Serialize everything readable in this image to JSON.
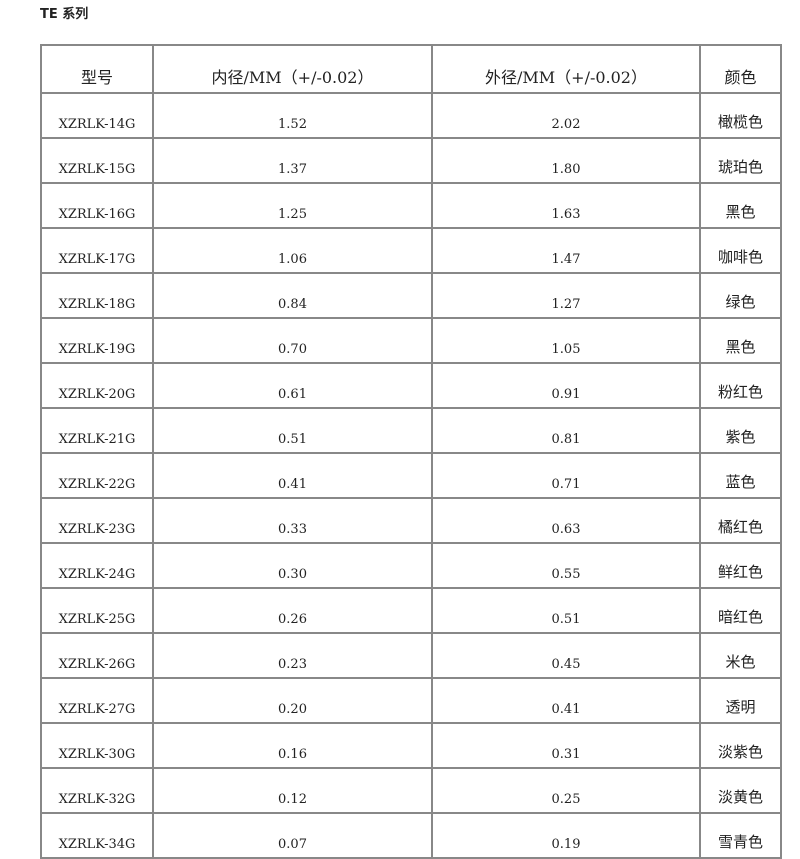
{
  "title": "TE 系列",
  "headers": [
    "型号",
    "内径/MM（+/-0.02）",
    "外径/MM（+/-0.02）",
    "颜色"
  ],
  "rows": [
    [
      "XZRLK-14G",
      "1.52",
      "2.02",
      "橄榄色"
    ],
    [
      "XZRLK-15G",
      "1.37",
      "1.80",
      "琥珀色"
    ],
    [
      "XZRLK-16G",
      "1.25",
      "1.63",
      "黑色"
    ],
    [
      "XZRLK-17G",
      "1.06",
      "1.47",
      "咖啡色"
    ],
    [
      "XZRLK-18G",
      "0.84",
      "1.27",
      "绿色"
    ],
    [
      "XZRLK-19G",
      "0.70",
      "1.05",
      "黑色"
    ],
    [
      "XZRLK-20G",
      "0.61",
      "0.91",
      "粉红色"
    ],
    [
      "XZRLK-21G",
      "0.51",
      "0.81",
      "紫色"
    ],
    [
      "XZRLK-22G",
      "0.41",
      "0.71",
      "蓝色"
    ],
    [
      "XZRLK-23G",
      "0.33",
      "0.63",
      "橘红色"
    ],
    [
      "XZRLK-24G",
      "0.30",
      "0.55",
      "鲜红色"
    ],
    [
      "XZRLK-25G",
      "0.26",
      "0.51",
      "暗红色"
    ],
    [
      "XZRLK-26G",
      "0.23",
      "0.45",
      "米色"
    ],
    [
      "XZRLK-27G",
      "0.20",
      "0.41",
      "透明"
    ],
    [
      "XZRLK-30G",
      "0.16",
      "0.31",
      "淡紫色"
    ],
    [
      "XZRLK-32G",
      "0.12",
      "0.25",
      "淡黄色"
    ],
    [
      "XZRLK-34G",
      "0.07",
      "0.19",
      "雪青色"
    ]
  ]
}
